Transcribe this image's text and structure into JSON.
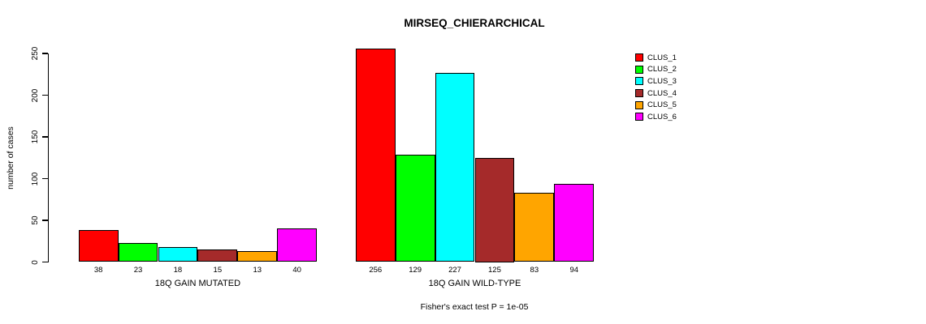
{
  "page": {
    "background": "#ffffff"
  },
  "chart_data": {
    "type": "bar",
    "title": "MIRSEQ_CHIERARCHICAL",
    "ylabel": "number of cases",
    "xlabel": "",
    "ylim": [
      0,
      250
    ],
    "yticks": [
      0,
      50,
      100,
      150,
      200,
      250
    ],
    "grid": false,
    "legend_position": "right-outside",
    "bar_border_color": "#000000",
    "clusters": [
      "CLUS_1",
      "CLUS_2",
      "CLUS_3",
      "CLUS_4",
      "CLUS_5",
      "CLUS_6"
    ],
    "colors": [
      "#FF0000",
      "#00FF00",
      "#00FFFF",
      "#A52A2A",
      "#FFA500",
      "#FF00FF"
    ],
    "groups": [
      {
        "label": "18Q GAIN MUTATED",
        "values": [
          38,
          23,
          18,
          15,
          13,
          40
        ]
      },
      {
        "label": "18Q GAIN WILD-TYPE",
        "values": [
          256,
          129,
          227,
          125,
          83,
          94
        ]
      }
    ],
    "value_labels_shown": true,
    "annotation": "Fisher's exact test P = 1e-05"
  }
}
